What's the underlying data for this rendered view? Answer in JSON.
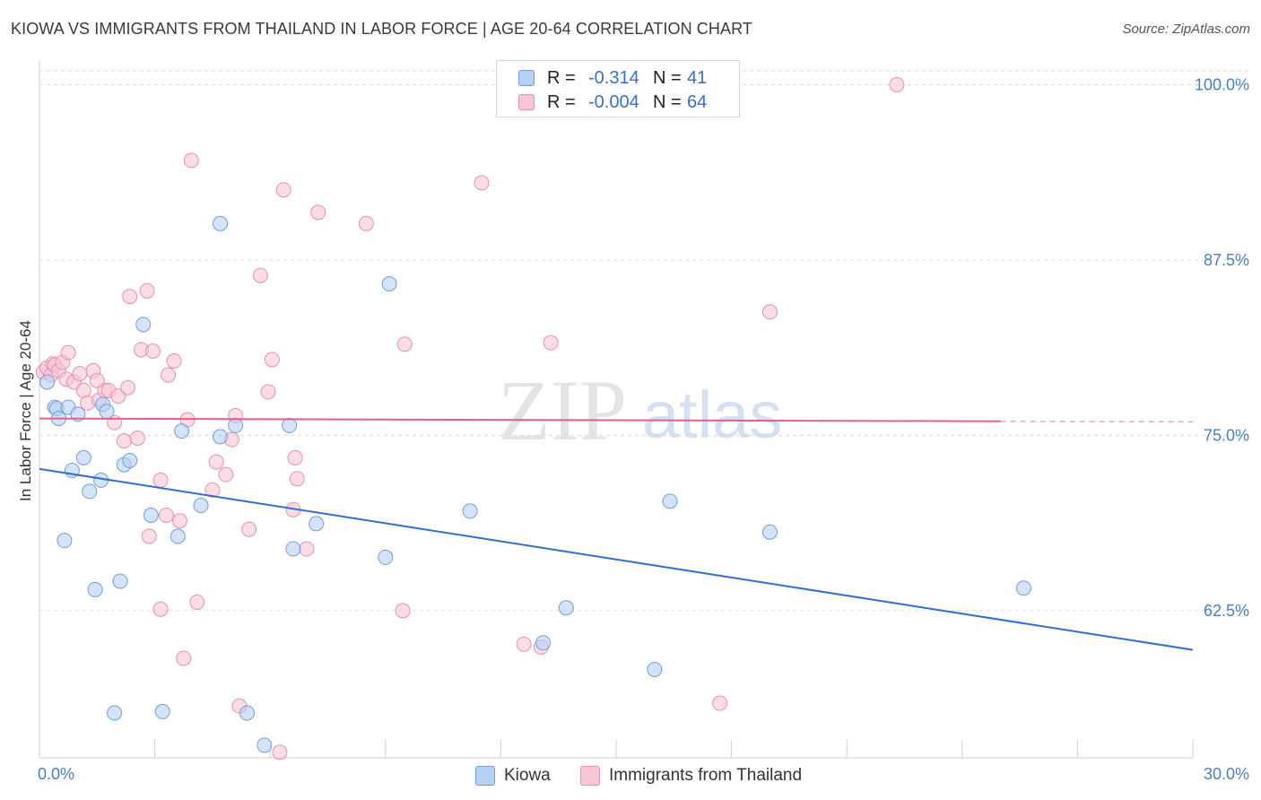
{
  "title": "KIOWA VS IMMIGRANTS FROM THAILAND IN LABOR FORCE | AGE 20-64 CORRELATION CHART",
  "source": "Source: ZipAtlas.com",
  "watermark": {
    "zip": "ZIP",
    "atlas": "atlas"
  },
  "legend_top": {
    "rows": [
      {
        "r_key": "R =",
        "r_val": "-0.314",
        "n_key": "N =",
        "n_val": "41",
        "color": "blue"
      },
      {
        "r_key": "R =",
        "r_val": "-0.004",
        "n_key": "N =",
        "n_val": "64",
        "color": "pink"
      }
    ]
  },
  "chart_data": {
    "type": "scatter",
    "title": "KIOWA VS IMMIGRANTS FROM THAILAND IN LABOR FORCE | AGE 20-64 CORRELATION CHART",
    "xlabel": "",
    "ylabel": "In Labor Force | Age 20-64",
    "xlim": [
      0,
      30
    ],
    "ylim": [
      52,
      101.5
    ],
    "x_tick_labels": {
      "left": "0.0%",
      "right": "30.0%"
    },
    "y_ticks": [
      {
        "value": 100,
        "label": "100.0%"
      },
      {
        "value": 87.5,
        "label": "87.5%"
      },
      {
        "value": 75,
        "label": "75.0%"
      },
      {
        "value": 62.5,
        "label": "62.5%"
      }
    ],
    "colors": {
      "kiowa_fill": "#b7d1f3",
      "kiowa_stroke": "#6f9fe0",
      "kiowa_line": "#2f6fd0",
      "thai_fill": "#f8c6d6",
      "thai_stroke": "#ea8fae",
      "thai_line": "#e2608a"
    },
    "series": [
      {
        "name": "Kiowa",
        "trend": {
          "x0": 0,
          "y0": 72.6,
          "x1": 30,
          "y1": 59.7
        },
        "points": [
          [
            0.2,
            78.8
          ],
          [
            0.4,
            77.0
          ],
          [
            0.45,
            76.9
          ],
          [
            0.5,
            76.2
          ],
          [
            0.65,
            67.5
          ],
          [
            0.75,
            77.0
          ],
          [
            0.85,
            72.5
          ],
          [
            1.0,
            76.5
          ],
          [
            1.15,
            73.4
          ],
          [
            1.3,
            71.0
          ],
          [
            1.45,
            64.0
          ],
          [
            1.6,
            71.8
          ],
          [
            1.65,
            77.2
          ],
          [
            1.75,
            76.7
          ],
          [
            1.95,
            55.2
          ],
          [
            2.1,
            64.6
          ],
          [
            2.2,
            72.9
          ],
          [
            2.35,
            73.2
          ],
          [
            2.7,
            82.9
          ],
          [
            2.9,
            69.3
          ],
          [
            3.2,
            55.3
          ],
          [
            3.6,
            67.8
          ],
          [
            3.7,
            75.3
          ],
          [
            4.2,
            70.0
          ],
          [
            4.7,
            74.9
          ],
          [
            4.7,
            90.1
          ],
          [
            5.1,
            75.7
          ],
          [
            5.4,
            55.2
          ],
          [
            5.85,
            52.9
          ],
          [
            6.5,
            75.7
          ],
          [
            6.6,
            66.9
          ],
          [
            7.2,
            68.7
          ],
          [
            9.0,
            66.3
          ],
          [
            9.1,
            85.8
          ],
          [
            11.2,
            69.6
          ],
          [
            13.1,
            60.2
          ],
          [
            13.7,
            62.7
          ],
          [
            16.0,
            58.3
          ],
          [
            16.4,
            70.3
          ],
          [
            19.0,
            68.1
          ],
          [
            25.6,
            64.1
          ]
        ]
      },
      {
        "name": "Immigrants from Thailand",
        "trend": {
          "x0": 0,
          "y0": 76.2,
          "x1": 25.0,
          "y1": 76.0,
          "dash_to": 30
        },
        "points": [
          [
            0.1,
            79.5
          ],
          [
            0.2,
            79.8
          ],
          [
            0.3,
            79.3
          ],
          [
            0.35,
            80.1
          ],
          [
            0.4,
            80.0
          ],
          [
            0.5,
            79.6
          ],
          [
            0.6,
            80.2
          ],
          [
            0.7,
            79.0
          ],
          [
            0.75,
            80.9
          ],
          [
            0.9,
            78.8
          ],
          [
            1.05,
            79.4
          ],
          [
            1.15,
            78.2
          ],
          [
            1.25,
            77.3
          ],
          [
            1.4,
            79.6
          ],
          [
            1.5,
            78.9
          ],
          [
            1.55,
            77.5
          ],
          [
            1.7,
            78.2
          ],
          [
            1.8,
            78.2
          ],
          [
            1.95,
            75.9
          ],
          [
            2.05,
            77.8
          ],
          [
            2.2,
            74.6
          ],
          [
            2.3,
            78.4
          ],
          [
            2.35,
            84.9
          ],
          [
            2.55,
            74.8
          ],
          [
            2.65,
            81.1
          ],
          [
            2.8,
            85.3
          ],
          [
            2.85,
            67.8
          ],
          [
            2.95,
            81.0
          ],
          [
            3.15,
            71.8
          ],
          [
            3.15,
            62.6
          ],
          [
            3.3,
            69.3
          ],
          [
            3.35,
            79.3
          ],
          [
            3.5,
            80.3
          ],
          [
            3.65,
            68.9
          ],
          [
            3.75,
            59.1
          ],
          [
            3.85,
            76.1
          ],
          [
            3.95,
            94.6
          ],
          [
            4.1,
            63.1
          ],
          [
            4.5,
            71.1
          ],
          [
            4.6,
            73.1
          ],
          [
            4.85,
            72.2
          ],
          [
            5.0,
            74.7
          ],
          [
            5.1,
            76.4
          ],
          [
            5.2,
            55.7
          ],
          [
            5.45,
            68.3
          ],
          [
            5.75,
            86.4
          ],
          [
            5.95,
            78.1
          ],
          [
            6.05,
            80.4
          ],
          [
            6.25,
            52.4
          ],
          [
            6.35,
            92.5
          ],
          [
            6.6,
            69.7
          ],
          [
            6.65,
            73.4
          ],
          [
            6.7,
            71.9
          ],
          [
            6.95,
            66.9
          ],
          [
            7.25,
            90.9
          ],
          [
            8.5,
            90.1
          ],
          [
            9.45,
            62.5
          ],
          [
            9.5,
            81.5
          ],
          [
            11.5,
            93.0
          ],
          [
            12.6,
            60.1
          ],
          [
            13.05,
            59.9
          ],
          [
            13.3,
            81.6
          ],
          [
            17.7,
            55.9
          ],
          [
            19.0,
            83.8
          ],
          [
            22.3,
            100.0
          ]
        ]
      }
    ]
  },
  "legend_bottom": [
    {
      "label": "Kiowa",
      "color": "blue"
    },
    {
      "label": "Immigrants from Thailand",
      "color": "pink"
    }
  ]
}
